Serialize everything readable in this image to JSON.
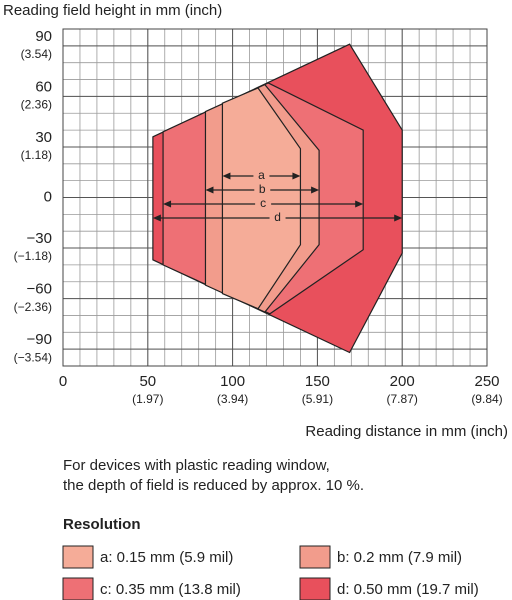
{
  "chart_data": {
    "type": "area",
    "title": "Reading field height in mm (inch)",
    "xlabel": "Reading distance in mm (inch)",
    "note": [
      "For devices with plastic reading window,",
      "the depth of field is reduced by approx. 10 %."
    ],
    "legend_title": "Resolution",
    "xlim": [
      0,
      250
    ],
    "ylim": [
      -100,
      100
    ],
    "grid": true,
    "xticks": [
      0,
      {
        "value": 50,
        "label": "50",
        "inch": "(1.97)"
      },
      {
        "value": 100,
        "label": "100",
        "inch": "(3.94)"
      },
      {
        "value": 150,
        "label": "150",
        "inch": "(5.91)"
      },
      {
        "value": 200,
        "label": "200",
        "inch": "(7.87)"
      },
      {
        "value": 250,
        "label": "250",
        "inch": "(9.84)"
      }
    ],
    "yticks": [
      {
        "value": 90,
        "label": "90",
        "inch": "(3.54)"
      },
      {
        "value": 60,
        "label": "60",
        "inch": "(2.36)"
      },
      {
        "value": 30,
        "label": "30",
        "inch": "(1.18)"
      },
      0,
      {
        "value": -30,
        "label": "−30",
        "inch": "(−1.18)"
      },
      {
        "value": -60,
        "label": "−60",
        "inch": "(−2.36)"
      },
      {
        "value": -90,
        "label": "−90",
        "inch": "(−3.54)"
      }
    ],
    "series": [
      {
        "name": "d: 0.50 mm (19.7 mil)",
        "label": "d",
        "color": "#e8505c",
        "x": [
          53,
          169,
          200,
          200,
          169,
          53
        ],
        "y": [
          36,
          91,
          40,
          -33,
          -92,
          -37
        ]
      },
      {
        "name": "c: 0.35 mm (13.8 mil)",
        "label": "c",
        "color": "#ee7075",
        "x": [
          59,
          121,
          177,
          177,
          122,
          59
        ],
        "y": [
          39,
          68,
          40,
          -31,
          -69,
          -40
        ]
      },
      {
        "name": "b: 0.2 mm (7.9 mil)",
        "label": "b",
        "color": "#f29c8c",
        "x": [
          84,
          119,
          151,
          151,
          119,
          84
        ],
        "y": [
          51,
          67,
          28,
          -28,
          -68,
          -52
        ]
      },
      {
        "name": "a: 0.15 mm (5.9 mil)",
        "label": "a",
        "color": "#f5ac98",
        "x": [
          94,
          115,
          140,
          140,
          115,
          94
        ],
        "y": [
          56,
          65,
          29,
          -28,
          -66,
          -57
        ]
      }
    ]
  }
}
